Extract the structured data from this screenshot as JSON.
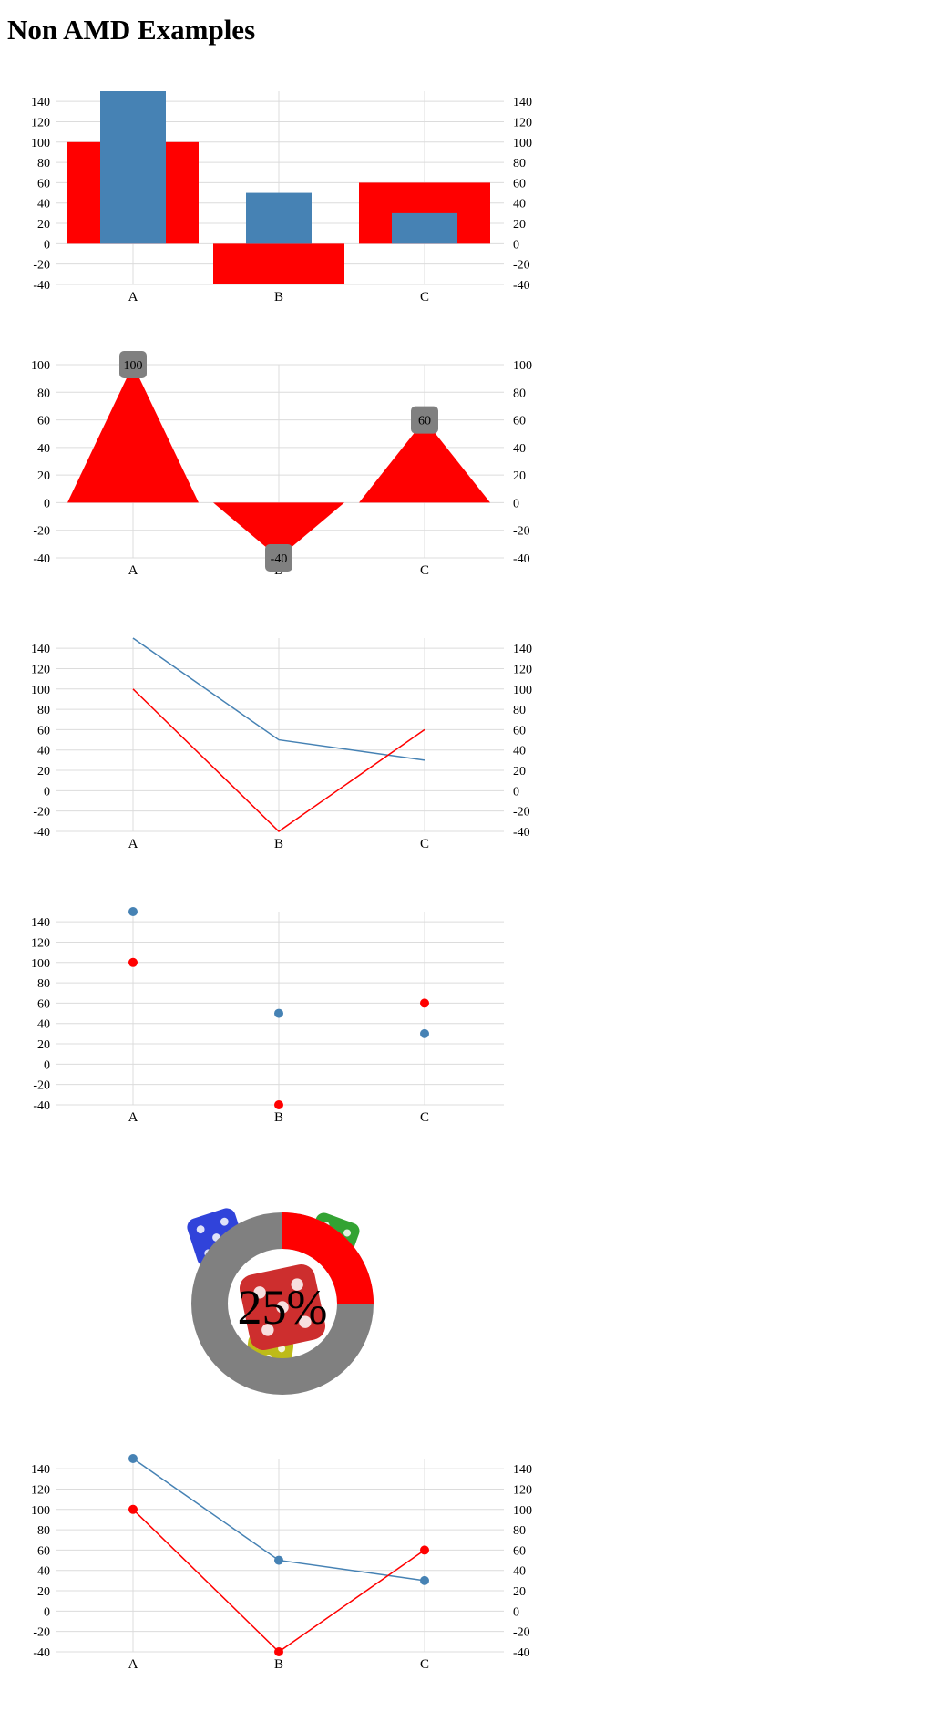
{
  "page": {
    "title": "Non AMD Examples"
  },
  "colors": {
    "series_red": "#ff0000",
    "series_blue": "#4682b4",
    "grid": "#dcdcdc",
    "label_box": "#808080",
    "gauge_track": "#808080",
    "gauge_fill": "#ff0000"
  },
  "chart_data": [
    {
      "id": "chart-bar",
      "type": "bar",
      "categories": [
        "A",
        "B",
        "C"
      ],
      "series": [
        {
          "values": [
            100,
            -40,
            60
          ],
          "color": "#ff0000",
          "style": "wide"
        },
        {
          "values": [
            150,
            50,
            30
          ],
          "color": "#4682b4",
          "style": "narrow"
        }
      ],
      "ylim": [
        -40,
        150
      ],
      "yticks": [
        140,
        120,
        100,
        80,
        60,
        40,
        20,
        0,
        -20,
        -40
      ],
      "right_axis": true,
      "grid": true
    },
    {
      "id": "chart-triangle",
      "type": "area",
      "categories": [
        "A",
        "B",
        "C"
      ],
      "series": [
        {
          "values": [
            100,
            -40,
            60
          ],
          "color": "#ff0000",
          "style": "triangle"
        }
      ],
      "data_labels": [
        "100",
        "-40",
        "60"
      ],
      "ylim": [
        -40,
        100
      ],
      "yticks": [
        100,
        80,
        60,
        40,
        20,
        0,
        -20,
        -40
      ],
      "right_axis": true,
      "grid": true
    },
    {
      "id": "chart-line",
      "type": "line",
      "categories": [
        "A",
        "B",
        "C"
      ],
      "series": [
        {
          "values": [
            150,
            50,
            30
          ],
          "color": "#4682b4"
        },
        {
          "values": [
            100,
            -40,
            60
          ],
          "color": "#ff0000"
        }
      ],
      "ylim": [
        -40,
        150
      ],
      "yticks": [
        140,
        120,
        100,
        80,
        60,
        40,
        20,
        0,
        -20,
        -40
      ],
      "right_axis": true,
      "grid": true
    },
    {
      "id": "chart-scatter",
      "type": "scatter",
      "categories": [
        "A",
        "B",
        "C"
      ],
      "series": [
        {
          "values": [
            150,
            50,
            30
          ],
          "color": "#4682b4"
        },
        {
          "values": [
            100,
            -40,
            60
          ],
          "color": "#ff0000"
        }
      ],
      "ylim": [
        -40,
        150
      ],
      "yticks": [
        140,
        120,
        100,
        80,
        60,
        40,
        20,
        0,
        -20,
        -40
      ],
      "right_axis": false,
      "grid": true
    },
    {
      "id": "chart-gauge",
      "type": "pie",
      "value": 25,
      "label": "25%",
      "track_color": "#808080",
      "fill_color": "#ff0000",
      "background": "dice image"
    },
    {
      "id": "chart-linedot",
      "type": "line",
      "categories": [
        "A",
        "B",
        "C"
      ],
      "series": [
        {
          "values": [
            150,
            50,
            30
          ],
          "color": "#4682b4",
          "markers": true
        },
        {
          "values": [
            100,
            -40,
            60
          ],
          "color": "#ff0000",
          "markers": true
        }
      ],
      "ylim": [
        -40,
        150
      ],
      "yticks": [
        140,
        120,
        100,
        80,
        60,
        40,
        20,
        0,
        -20,
        -40
      ],
      "right_axis": true,
      "grid": true
    }
  ]
}
